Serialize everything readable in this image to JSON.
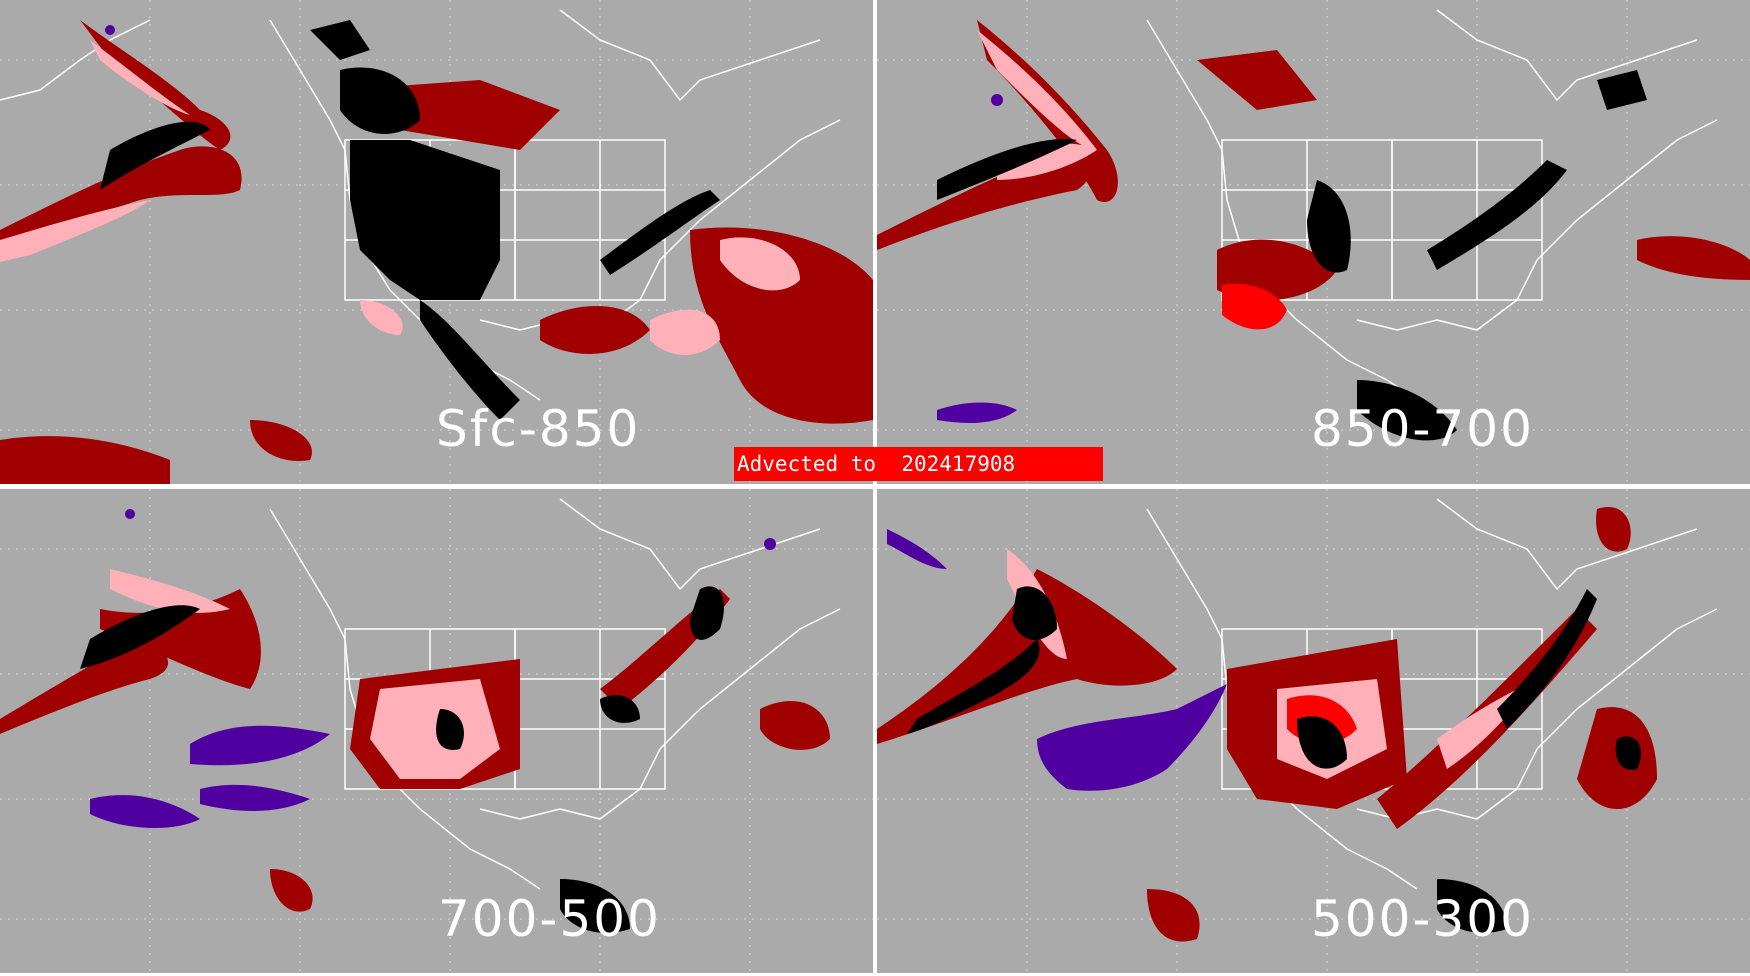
{
  "banner": {
    "text": "Advected to  202417908",
    "color": "#ff0000"
  },
  "panels": [
    {
      "id": "tl",
      "label": "Sfc-850"
    },
    {
      "id": "tr",
      "label": "850-700"
    },
    {
      "id": "bl",
      "label": "700-500"
    },
    {
      "id": "br",
      "label": "500-300"
    }
  ],
  "colors": {
    "background": "#aaaaaa",
    "coastline": "#ffffff",
    "graticule": "#d8d8d8",
    "dark_red": "#a00000",
    "pink": "#ffb0b8",
    "black": "#000000",
    "bright_red": "#ff0000",
    "purple": "#5000a0"
  }
}
